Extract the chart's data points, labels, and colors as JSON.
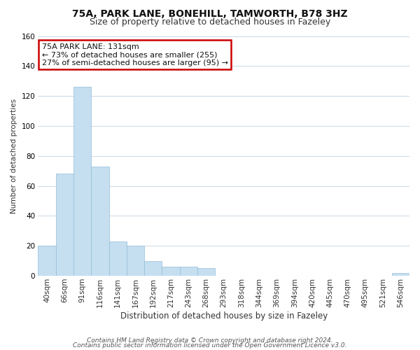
{
  "title1": "75A, PARK LANE, BONEHILL, TAMWORTH, B78 3HZ",
  "title2": "Size of property relative to detached houses in Fazeley",
  "xlabel": "Distribution of detached houses by size in Fazeley",
  "ylabel": "Number of detached properties",
  "bar_labels": [
    "40sqm",
    "66sqm",
    "91sqm",
    "116sqm",
    "141sqm",
    "167sqm",
    "192sqm",
    "217sqm",
    "243sqm",
    "268sqm",
    "293sqm",
    "318sqm",
    "344sqm",
    "369sqm",
    "394sqm",
    "420sqm",
    "445sqm",
    "470sqm",
    "495sqm",
    "521sqm",
    "546sqm"
  ],
  "bar_values": [
    20,
    68,
    126,
    73,
    23,
    20,
    10,
    6,
    6,
    5,
    0,
    0,
    0,
    0,
    0,
    0,
    0,
    0,
    0,
    0,
    2
  ],
  "bar_color": "#c5dff0",
  "bar_edge_color": "#94bcd8",
  "ylim": [
    0,
    160
  ],
  "yticks": [
    0,
    20,
    40,
    60,
    80,
    100,
    120,
    140,
    160
  ],
  "annotation_title": "75A PARK LANE: 131sqm",
  "annotation_line1": "← 73% of detached houses are smaller (255)",
  "annotation_line2": "27% of semi-detached houses are larger (95) →",
  "annotation_box_facecolor": "#ffffff",
  "annotation_border_color": "#cc0000",
  "footer1": "Contains HM Land Registry data © Crown copyright and database right 2024.",
  "footer2": "Contains public sector information licensed under the Open Government Licence v3.0.",
  "bg_color": "#ffffff",
  "grid_color": "#d0dce8",
  "title1_fontsize": 10,
  "title2_fontsize": 9,
  "xlabel_fontsize": 8.5,
  "ylabel_fontsize": 7.5,
  "tick_fontsize": 7.5,
  "ann_fontsize": 8.0,
  "footer_fontsize": 6.5
}
